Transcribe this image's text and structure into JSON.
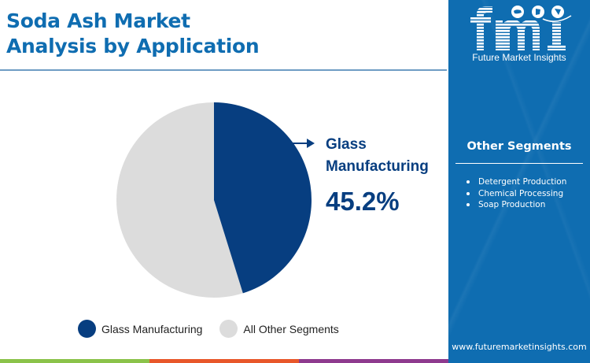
{
  "header": {
    "title_line1": "Soda Ash Market",
    "title_line2": "Analysis by Application"
  },
  "callout": {
    "label_line1": "Glass",
    "label_line2": "Manufacturing",
    "value": "45.2%"
  },
  "legend": {
    "items": [
      {
        "label": "Glass Manufacturing",
        "color": "#073e80"
      },
      {
        "label": "All Other Segments",
        "color": "#dcdcdc"
      }
    ]
  },
  "sidebar": {
    "logo_text": "fmi",
    "logo_caption": "Future Market Insights",
    "segments_title": "Other Segments",
    "segments": [
      "Detergent Production",
      "Chemical Processing",
      "Soap Production"
    ],
    "website": "www.futuremarketinsights.com"
  },
  "colors": {
    "title": "#0f6db1",
    "primary_slice": "#073e80",
    "other_slice": "#dcdcdc",
    "sidebar_bg": "#0f6db1",
    "strip": [
      "#8bc34a",
      "#e8572a",
      "#8e3a8e"
    ]
  },
  "chart_data": {
    "type": "pie",
    "title": "Soda Ash Market Analysis by Application",
    "categories": [
      "Glass Manufacturing",
      "All Other Segments"
    ],
    "values": [
      45.2,
      54.8
    ],
    "unit": "%",
    "annotations": [
      {
        "target": "Glass Manufacturing",
        "text": "Glass Manufacturing 45.2%"
      }
    ],
    "legend_position": "bottom",
    "start_angle": "12 o'clock, clockwise"
  }
}
